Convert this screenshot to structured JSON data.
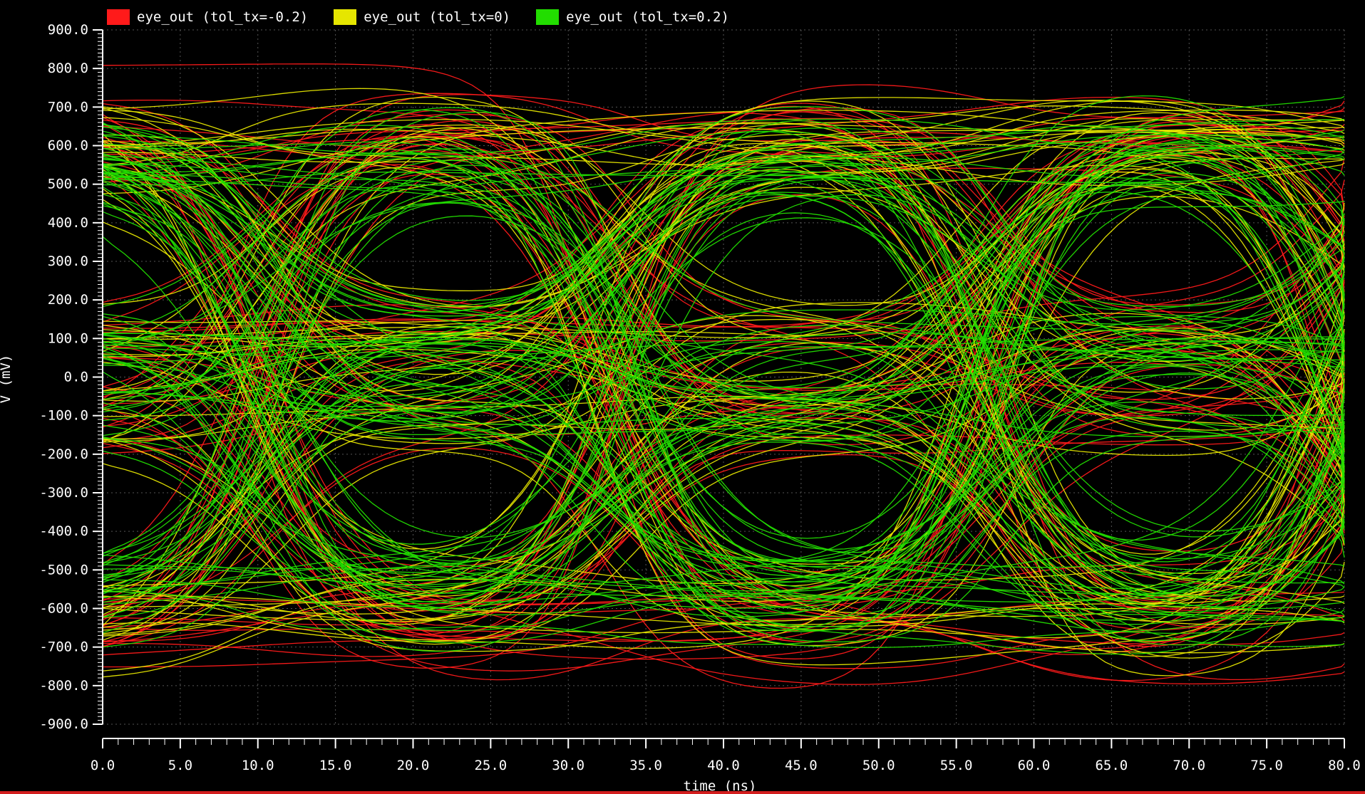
{
  "chart_data": {
    "type": "line",
    "title": "",
    "xlabel": "time (ns)",
    "ylabel": "V (mV)",
    "xlim": [
      0,
      80
    ],
    "ylim": [
      -900,
      900
    ],
    "x_ticks": [
      "0.0",
      "5.0",
      "10.0",
      "15.0",
      "20.0",
      "25.0",
      "30.0",
      "35.0",
      "40.0",
      "45.0",
      "50.0",
      "55.0",
      "60.0",
      "65.0",
      "70.0",
      "75.0",
      "80.0"
    ],
    "y_ticks": [
      "900.0",
      "800.0",
      "700.0",
      "600.0",
      "500.0",
      "400.0",
      "300.0",
      "200.0",
      "100.0",
      "0.0",
      "-100.0",
      "-200.0",
      "-300.0",
      "-400.0",
      "-500.0",
      "-600.0",
      "-700.0",
      "-800.0",
      "-900.0"
    ],
    "grid": true,
    "legend_position": "top-left",
    "series": [
      {
        "name": "eye_out (tol_tx=-0.2)",
        "color": "#ff1a1a",
        "level_amplitude_mv": 780,
        "traces": 70
      },
      {
        "name": "eye_out (tol_tx=0)",
        "color": "#e6e600",
        "level_amplitude_mv": 740,
        "traces": 70
      },
      {
        "name": "eye_out (tol_tx=0.2)",
        "color": "#22dd00",
        "level_amplitude_mv": 700,
        "traces": 110
      }
    ]
  }
}
